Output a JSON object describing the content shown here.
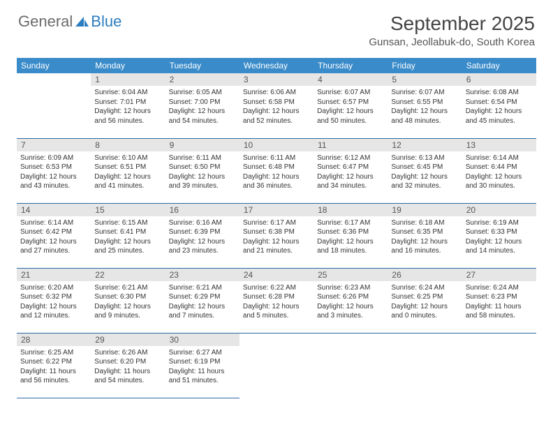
{
  "logo": {
    "text1": "General",
    "text2": "Blue"
  },
  "title": "September 2025",
  "location": "Gunsan, Jeollabuk-do, South Korea",
  "colors": {
    "header_bg": "#3a8bc9",
    "header_text": "#ffffff",
    "daynum_bg": "#e6e6e6",
    "daynum_text": "#555555",
    "row_border": "#2a6aa0",
    "body_text": "#333333",
    "logo_gray": "#6b6b6b",
    "logo_blue": "#2a7dc0"
  },
  "weekdays": [
    "Sunday",
    "Monday",
    "Tuesday",
    "Wednesday",
    "Thursday",
    "Friday",
    "Saturday"
  ],
  "weeks": [
    [
      null,
      {
        "n": "1",
        "sr": "6:04 AM",
        "ss": "7:01 PM",
        "dl": "12 hours and 56 minutes."
      },
      {
        "n": "2",
        "sr": "6:05 AM",
        "ss": "7:00 PM",
        "dl": "12 hours and 54 minutes."
      },
      {
        "n": "3",
        "sr": "6:06 AM",
        "ss": "6:58 PM",
        "dl": "12 hours and 52 minutes."
      },
      {
        "n": "4",
        "sr": "6:07 AM",
        "ss": "6:57 PM",
        "dl": "12 hours and 50 minutes."
      },
      {
        "n": "5",
        "sr": "6:07 AM",
        "ss": "6:55 PM",
        "dl": "12 hours and 48 minutes."
      },
      {
        "n": "6",
        "sr": "6:08 AM",
        "ss": "6:54 PM",
        "dl": "12 hours and 45 minutes."
      }
    ],
    [
      {
        "n": "7",
        "sr": "6:09 AM",
        "ss": "6:53 PM",
        "dl": "12 hours and 43 minutes."
      },
      {
        "n": "8",
        "sr": "6:10 AM",
        "ss": "6:51 PM",
        "dl": "12 hours and 41 minutes."
      },
      {
        "n": "9",
        "sr": "6:11 AM",
        "ss": "6:50 PM",
        "dl": "12 hours and 39 minutes."
      },
      {
        "n": "10",
        "sr": "6:11 AM",
        "ss": "6:48 PM",
        "dl": "12 hours and 36 minutes."
      },
      {
        "n": "11",
        "sr": "6:12 AM",
        "ss": "6:47 PM",
        "dl": "12 hours and 34 minutes."
      },
      {
        "n": "12",
        "sr": "6:13 AM",
        "ss": "6:45 PM",
        "dl": "12 hours and 32 minutes."
      },
      {
        "n": "13",
        "sr": "6:14 AM",
        "ss": "6:44 PM",
        "dl": "12 hours and 30 minutes."
      }
    ],
    [
      {
        "n": "14",
        "sr": "6:14 AM",
        "ss": "6:42 PM",
        "dl": "12 hours and 27 minutes."
      },
      {
        "n": "15",
        "sr": "6:15 AM",
        "ss": "6:41 PM",
        "dl": "12 hours and 25 minutes."
      },
      {
        "n": "16",
        "sr": "6:16 AM",
        "ss": "6:39 PM",
        "dl": "12 hours and 23 minutes."
      },
      {
        "n": "17",
        "sr": "6:17 AM",
        "ss": "6:38 PM",
        "dl": "12 hours and 21 minutes."
      },
      {
        "n": "18",
        "sr": "6:17 AM",
        "ss": "6:36 PM",
        "dl": "12 hours and 18 minutes."
      },
      {
        "n": "19",
        "sr": "6:18 AM",
        "ss": "6:35 PM",
        "dl": "12 hours and 16 minutes."
      },
      {
        "n": "20",
        "sr": "6:19 AM",
        "ss": "6:33 PM",
        "dl": "12 hours and 14 minutes."
      }
    ],
    [
      {
        "n": "21",
        "sr": "6:20 AM",
        "ss": "6:32 PM",
        "dl": "12 hours and 12 minutes."
      },
      {
        "n": "22",
        "sr": "6:21 AM",
        "ss": "6:30 PM",
        "dl": "12 hours and 9 minutes."
      },
      {
        "n": "23",
        "sr": "6:21 AM",
        "ss": "6:29 PM",
        "dl": "12 hours and 7 minutes."
      },
      {
        "n": "24",
        "sr": "6:22 AM",
        "ss": "6:28 PM",
        "dl": "12 hours and 5 minutes."
      },
      {
        "n": "25",
        "sr": "6:23 AM",
        "ss": "6:26 PM",
        "dl": "12 hours and 3 minutes."
      },
      {
        "n": "26",
        "sr": "6:24 AM",
        "ss": "6:25 PM",
        "dl": "12 hours and 0 minutes."
      },
      {
        "n": "27",
        "sr": "6:24 AM",
        "ss": "6:23 PM",
        "dl": "11 hours and 58 minutes."
      }
    ],
    [
      {
        "n": "28",
        "sr": "6:25 AM",
        "ss": "6:22 PM",
        "dl": "11 hours and 56 minutes."
      },
      {
        "n": "29",
        "sr": "6:26 AM",
        "ss": "6:20 PM",
        "dl": "11 hours and 54 minutes."
      },
      {
        "n": "30",
        "sr": "6:27 AM",
        "ss": "6:19 PM",
        "dl": "11 hours and 51 minutes."
      },
      null,
      null,
      null,
      null
    ]
  ],
  "labels": {
    "sunrise": "Sunrise:",
    "sunset": "Sunset:",
    "daylight": "Daylight:"
  }
}
